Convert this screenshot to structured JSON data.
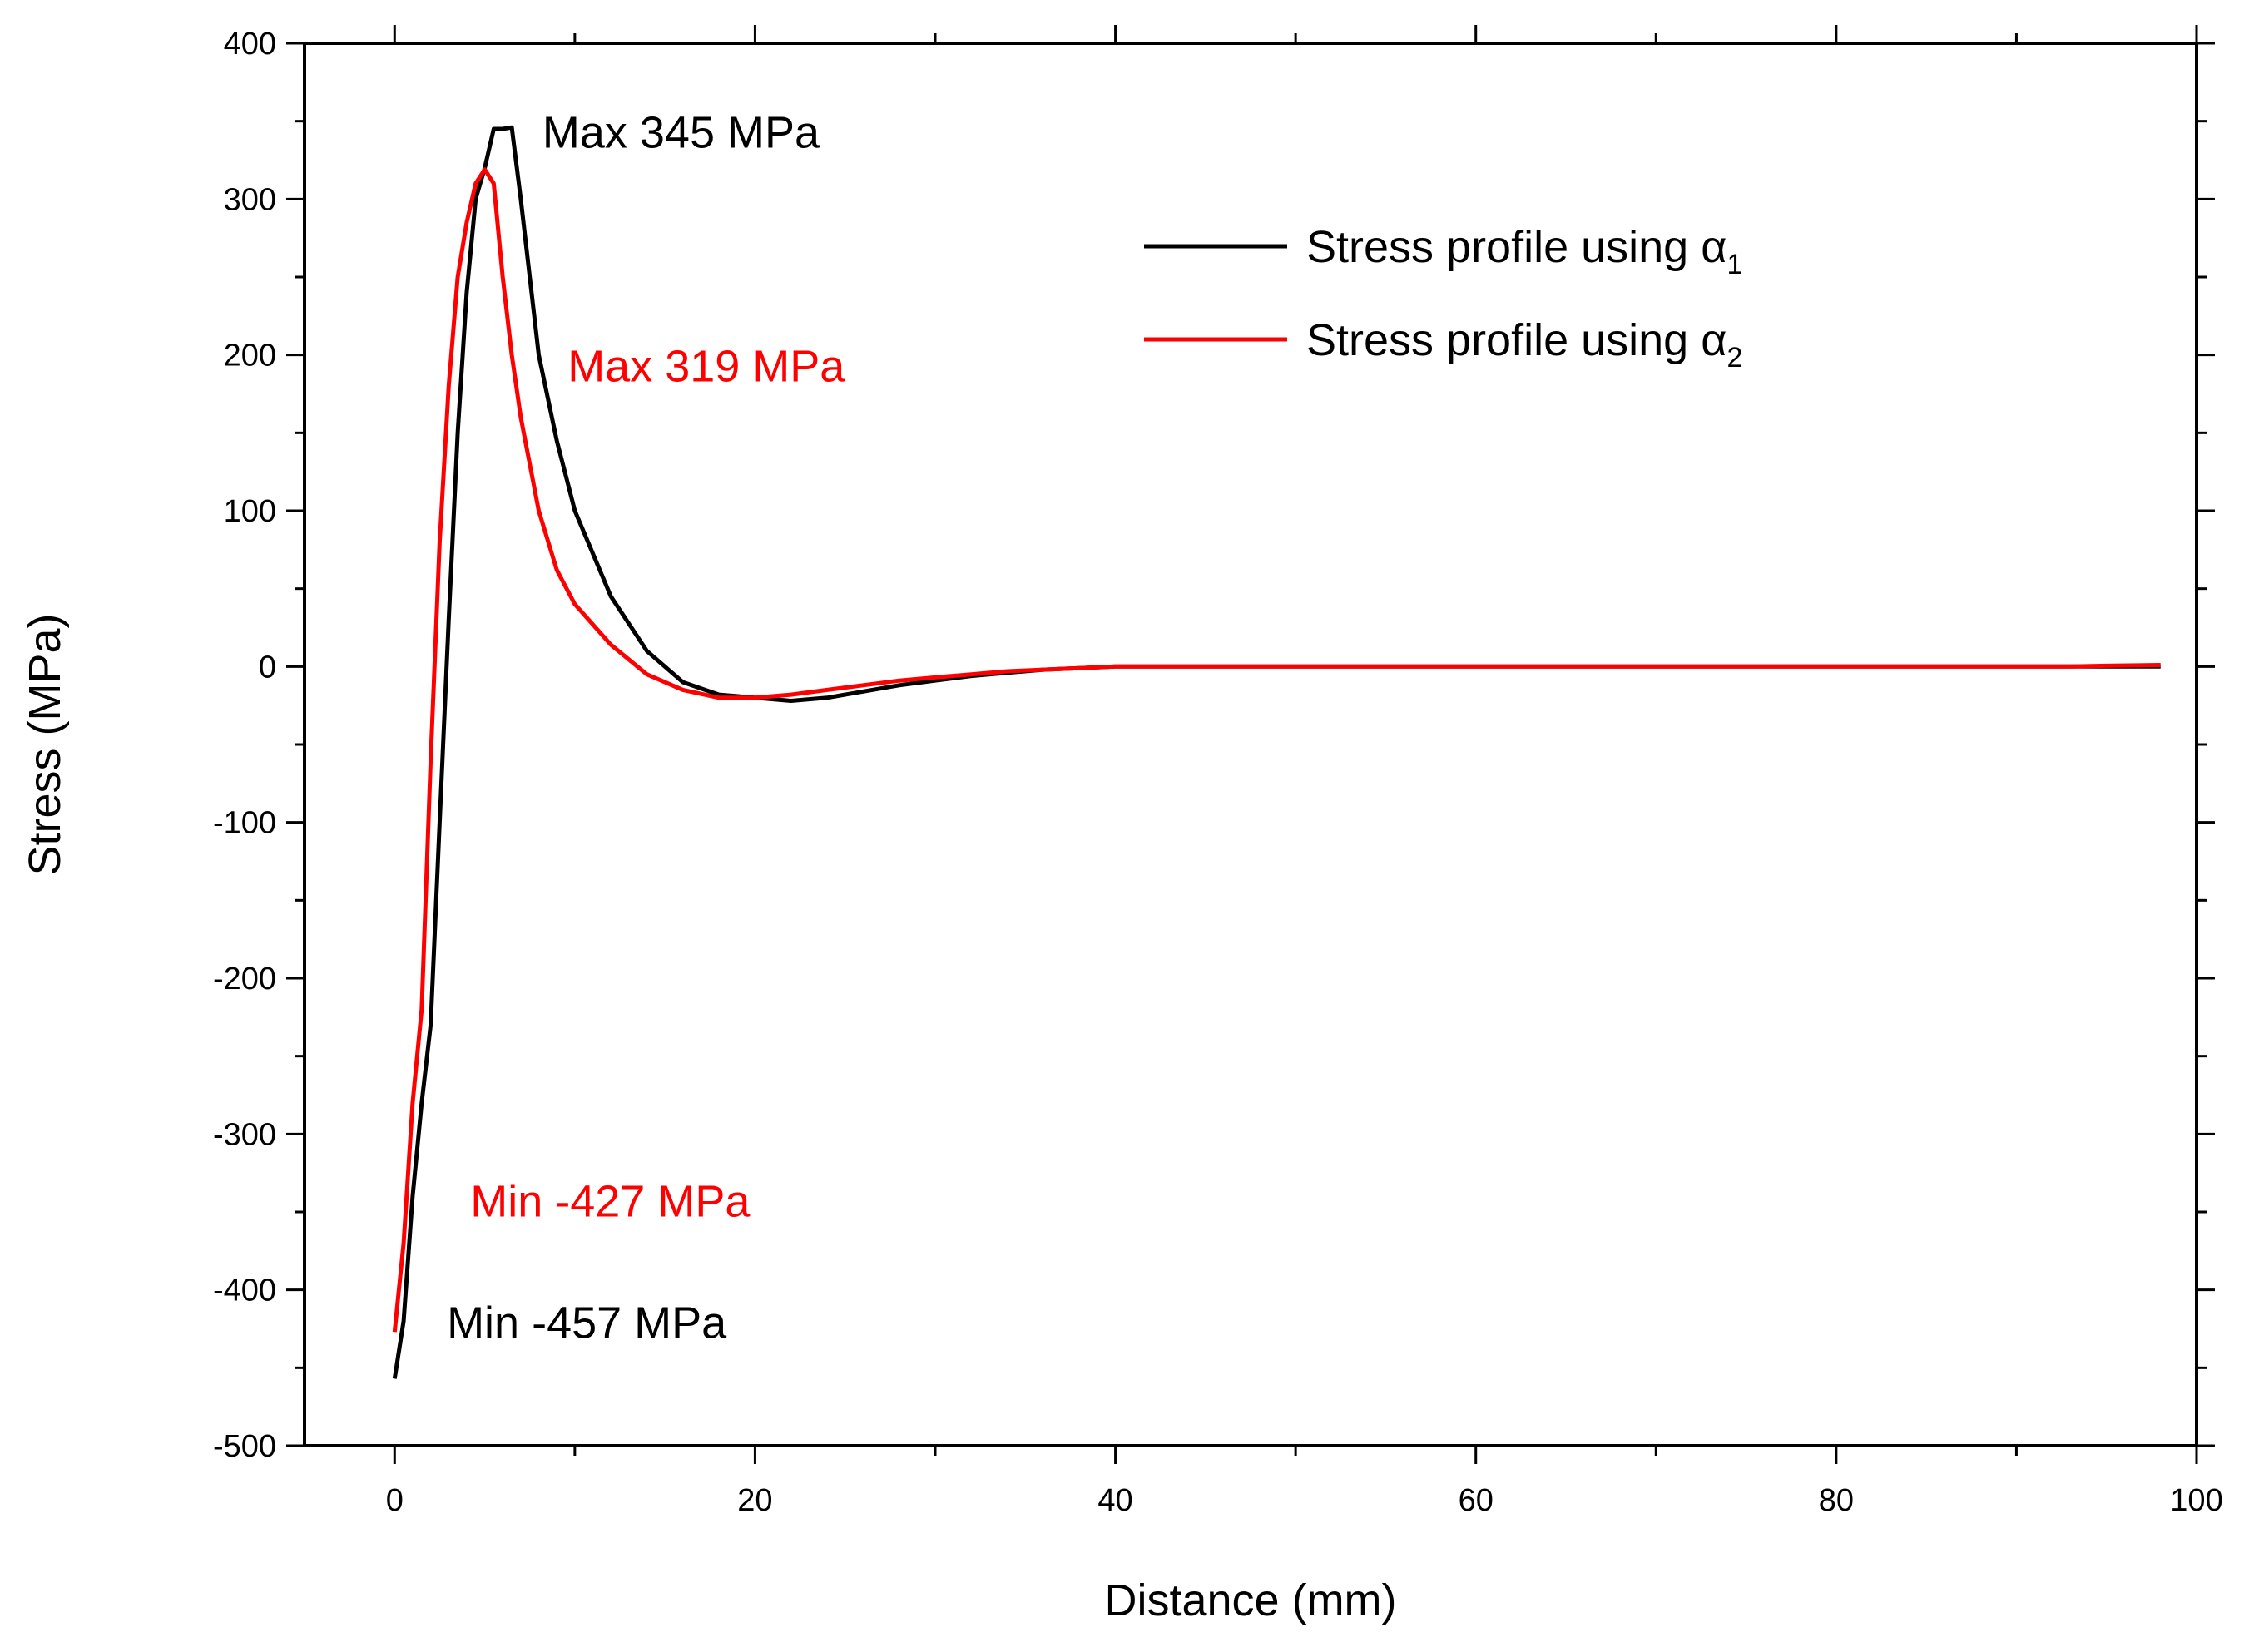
{
  "chart_data": {
    "type": "line",
    "title": "",
    "xlabel": "Distance (mm)",
    "ylabel": "Stress (MPa)",
    "xlim": [
      -5,
      100
    ],
    "ylim": [
      -500,
      400
    ],
    "x_ticks": [
      0,
      20,
      40,
      60,
      80,
      100
    ],
    "y_ticks": [
      -500,
      -400,
      -300,
      -200,
      -100,
      0,
      100,
      200,
      300,
      400
    ],
    "x_tick_labels": [
      "0",
      "20",
      "40",
      "60",
      "80",
      "100"
    ],
    "y_tick_labels": [
      "-500",
      "-400",
      "-300",
      "-200",
      "-100",
      "0",
      "100",
      "200",
      "300",
      "400"
    ],
    "legend_position": "top-right",
    "series": [
      {
        "name": "Stress profile using α1",
        "legend_label": "Stress profile using α",
        "legend_sub": "1",
        "color": "#000000",
        "x": [
          0,
          0.5,
          1,
          1.5,
          2,
          2.5,
          3,
          3.5,
          4,
          4.5,
          5,
          5.5,
          6,
          6.5,
          7,
          7.5,
          8,
          9,
          10,
          12,
          14,
          16,
          18,
          20,
          22,
          24,
          26,
          28,
          30,
          32,
          34,
          36,
          38,
          40,
          50,
          60,
          70,
          80,
          90,
          93,
          95,
          98
        ],
        "values": [
          -457,
          -420,
          -340,
          -280,
          -230,
          -100,
          30,
          150,
          240,
          300,
          320,
          345,
          345,
          346,
          300,
          250,
          200,
          145,
          100,
          45,
          10,
          -10,
          -18,
          -20,
          -22,
          -20,
          -16,
          -12,
          -9,
          -6,
          -4,
          -2,
          -1,
          0,
          0,
          0,
          0,
          0,
          0,
          0,
          0,
          0
        ]
      },
      {
        "name": "Stress profile using α2",
        "legend_label": "Stress profile using α",
        "legend_sub": "2",
        "color": "#ff0000",
        "x": [
          0,
          0.5,
          1,
          1.5,
          2,
          2.5,
          3,
          3.5,
          4,
          4.5,
          5,
          5.5,
          6,
          6.5,
          7,
          7.5,
          8,
          9,
          10,
          12,
          14,
          16,
          18,
          20,
          22,
          24,
          26,
          28,
          30,
          32,
          34,
          36,
          38,
          40,
          50,
          60,
          70,
          80,
          90,
          93,
          95,
          98
        ],
        "values": [
          -427,
          -370,
          -280,
          -220,
          -60,
          80,
          180,
          250,
          285,
          310,
          319,
          310,
          250,
          200,
          160,
          130,
          100,
          62,
          40,
          14,
          -5,
          -15,
          -20,
          -20,
          -18,
          -15,
          -12,
          -9,
          -7,
          -5,
          -3,
          -2,
          -1,
          0,
          0,
          0,
          0,
          0,
          0,
          0,
          0.5,
          1
        ]
      }
    ],
    "annotations": [
      {
        "text": "Max 345 MPa",
        "color": "#000000",
        "x": 8.2,
        "y": 333
      },
      {
        "text": "Max 319 MPa",
        "color": "#ff0000",
        "x": 9.6,
        "y": 183
      },
      {
        "text": "Min -427 MPa",
        "color": "#ff0000",
        "x": 4.2,
        "y": -353
      },
      {
        "text": "Min -457 MPa",
        "color": "#000000",
        "x": 2.9,
        "y": -431
      }
    ]
  }
}
